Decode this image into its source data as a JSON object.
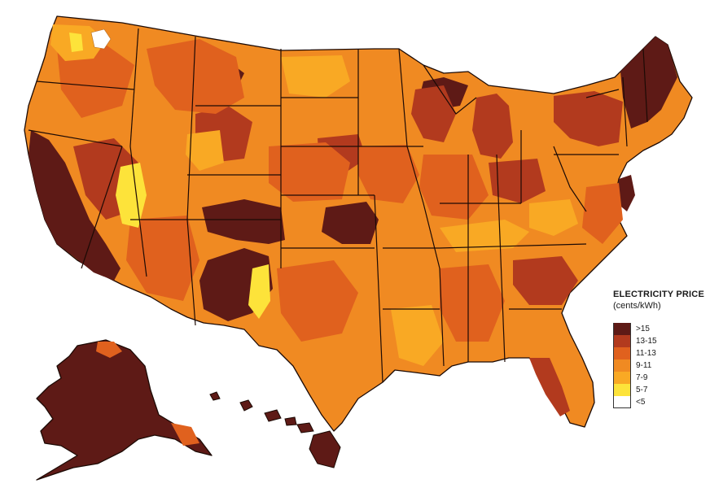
{
  "legend": {
    "title": "ELECTRICITY PRICE",
    "unit": "(cents/kWh)",
    "bins": [
      {
        "label": ">15",
        "color": "#5e1a16"
      },
      {
        "label": "13-15",
        "color": "#b23a1e"
      },
      {
        "label": "11-13",
        "color": "#e0611e"
      },
      {
        "label": "9-11",
        "color": "#f08a22"
      },
      {
        "label": "7-9",
        "color": "#f9a924"
      },
      {
        "label": "5-7",
        "color": "#fde33a"
      },
      {
        "label": "<5",
        "color": "#ffffff"
      }
    ]
  }
}
